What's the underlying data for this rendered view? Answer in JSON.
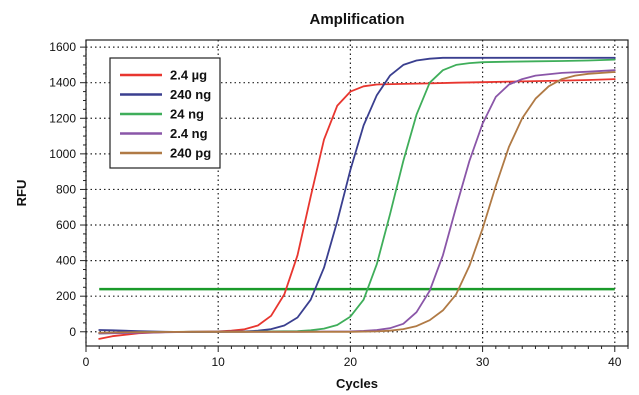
{
  "chart_data": {
    "type": "line",
    "title": "Amplification",
    "xlabel": "Cycles",
    "ylabel": "RFU",
    "xlim": [
      0,
      41
    ],
    "ylim": [
      -80,
      1640
    ],
    "x_ticks": [
      0,
      10,
      20,
      30,
      40
    ],
    "y_ticks": [
      0,
      200,
      400,
      600,
      800,
      1000,
      1200,
      1400,
      1600
    ],
    "grid": true,
    "legend_position": "top-left",
    "threshold": {
      "value": 240,
      "color": "#1a9a2a"
    },
    "series": [
      {
        "name": "2.4 µg",
        "color": "#e8362f",
        "x": [
          1,
          2,
          4,
          6,
          8,
          10,
          11,
          12,
          13,
          14,
          15,
          16,
          17,
          18,
          19,
          20,
          21,
          22,
          24,
          26,
          28,
          30,
          32,
          34,
          36,
          38,
          40
        ],
        "y": [
          -40,
          -25,
          -8,
          -2,
          0,
          2,
          6,
          14,
          35,
          90,
          210,
          430,
          760,
          1080,
          1270,
          1350,
          1380,
          1390,
          1393,
          1396,
          1400,
          1403,
          1406,
          1409,
          1412,
          1415,
          1420
        ]
      },
      {
        "name": "240 ng",
        "color": "#3a3f8f",
        "x": [
          1,
          2,
          4,
          6,
          8,
          10,
          12,
          13,
          14,
          15,
          16,
          17,
          18,
          19,
          20,
          21,
          22,
          23,
          24,
          25,
          26,
          27,
          28,
          30,
          34,
          38,
          40
        ],
        "y": [
          10,
          8,
          3,
          0,
          -2,
          0,
          2,
          6,
          15,
          35,
          80,
          180,
          360,
          620,
          910,
          1160,
          1330,
          1440,
          1500,
          1525,
          1535,
          1540,
          1540,
          1540,
          1540,
          1540,
          1540
        ]
      },
      {
        "name": "24 ng",
        "color": "#3fae5a",
        "x": [
          1,
          4,
          8,
          12,
          14,
          16,
          17,
          18,
          19,
          20,
          21,
          22,
          23,
          24,
          25,
          26,
          27,
          28,
          29,
          30,
          32,
          34,
          36,
          38,
          40
        ],
        "y": [
          -10,
          -3,
          0,
          0,
          2,
          4,
          8,
          18,
          38,
          85,
          180,
          380,
          660,
          960,
          1220,
          1400,
          1470,
          1500,
          1510,
          1515,
          1518,
          1520,
          1522,
          1525,
          1530
        ]
      },
      {
        "name": "2.4 ng",
        "color": "#8a56a8",
        "x": [
          1,
          4,
          8,
          12,
          16,
          20,
          21,
          22,
          23,
          24,
          25,
          26,
          27,
          28,
          29,
          30,
          31,
          32,
          33,
          34,
          36,
          38,
          40
        ],
        "y": [
          -10,
          -5,
          0,
          0,
          0,
          2,
          5,
          10,
          20,
          45,
          110,
          230,
          430,
          700,
          960,
          1170,
          1320,
          1390,
          1420,
          1440,
          1455,
          1462,
          1470
        ]
      },
      {
        "name": "240 pg",
        "color": "#b07a45",
        "x": [
          1,
          4,
          8,
          12,
          16,
          20,
          22,
          23,
          24,
          25,
          26,
          27,
          28,
          29,
          30,
          31,
          32,
          33,
          34,
          35,
          36,
          37,
          38,
          40
        ],
        "y": [
          -5,
          -2,
          0,
          0,
          0,
          0,
          2,
          6,
          15,
          32,
          65,
          120,
          210,
          370,
          580,
          820,
          1040,
          1200,
          1310,
          1380,
          1420,
          1440,
          1450,
          1460
        ]
      }
    ]
  }
}
